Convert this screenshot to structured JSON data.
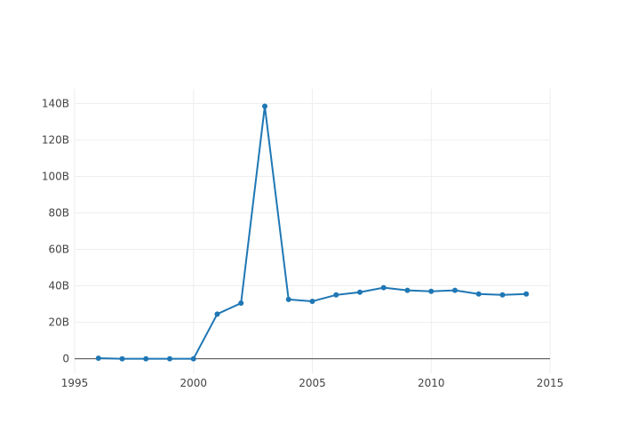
{
  "colors": {
    "line": "#1f77b4",
    "grid": "#eeeeee",
    "zeroline": "#444444",
    "tick_text": "#444444",
    "background": "#ffffff"
  },
  "chart_data": {
    "type": "line",
    "title": "",
    "xlabel": "",
    "ylabel": "",
    "grid": true,
    "legend": "none",
    "x_ticks": [
      "1995",
      "2000",
      "2005",
      "2010",
      "2015"
    ],
    "y_ticks": [
      "0",
      "20B",
      "40B",
      "60B",
      "80B",
      "100B",
      "120B",
      "140B"
    ],
    "xlim": [
      1995,
      2015
    ],
    "ylim": [
      -8,
      148
    ],
    "y_unit": "billions",
    "series": [
      {
        "x": [
          1996,
          1997,
          1998,
          1999,
          2000,
          2001,
          2002,
          2003,
          2004,
          2005,
          2006,
          2007,
          2008,
          2009,
          2010,
          2011,
          2012,
          2013,
          2014
        ],
        "y": [
          0.3,
          0,
          0,
          0,
          0,
          24.5,
          30.5,
          138.5,
          32.5,
          31.5,
          35,
          36.5,
          39,
          37.5,
          37,
          37.5,
          35.5,
          35,
          35.5
        ]
      }
    ]
  }
}
